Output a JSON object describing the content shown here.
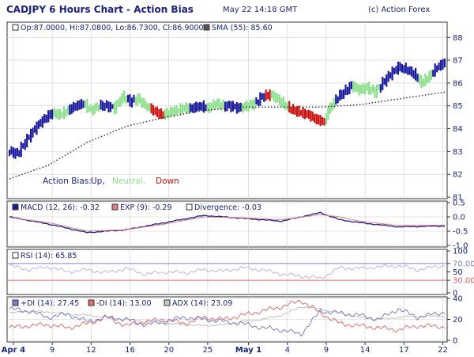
{
  "header": {
    "title": "CADJPY 6 Hours Chart - Action Bias",
    "date": "May 22 14:18 GMT",
    "copyright": "(c) Action Forex"
  },
  "colors": {
    "up": "#1a1a9e",
    "neutral": "#8ee08e",
    "down": "#cc1111",
    "frame": "#333333",
    "grid": "#cfcfcf",
    "text": "#1a237e",
    "sma": "#333333",
    "macd": "#1a1a8e",
    "exp": "#e08080",
    "rsi": "#9090d0",
    "rsi_line70": "#8080d0",
    "rsi_line30": "#e06060",
    "plusdi": "#8080c8",
    "minusdi": "#e07070",
    "adx": "#b0b0b0"
  },
  "chart_data": [
    {
      "type": "ohlc",
      "name": "price",
      "info": {
        "ohlc_label": "Op:87.0000, Hi:87.0800, Lo:86.7300, Cl:86.9000",
        "sma_label": "SMA (55): 85.60"
      },
      "ylim": [
        81,
        88.6
      ],
      "yticks": [
        "81",
        "82",
        "83",
        "84",
        "85",
        "86",
        "87",
        "88"
      ],
      "legend": {
        "prefix": "Action Bias:",
        "up": "Up,",
        "neutral": "Neutral,",
        "down": "Down"
      },
      "bias_segments": [
        {
          "from": 0,
          "to": 22,
          "bias": "up"
        },
        {
          "from": 23,
          "to": 30,
          "bias": "neutral"
        },
        {
          "from": 31,
          "to": 38,
          "bias": "up"
        },
        {
          "from": 39,
          "to": 46,
          "bias": "neutral"
        },
        {
          "from": 47,
          "to": 53,
          "bias": "up"
        },
        {
          "from": 54,
          "to": 60,
          "bias": "neutral"
        },
        {
          "from": 61,
          "to": 64,
          "bias": "up"
        },
        {
          "from": 65,
          "to": 72,
          "bias": "neutral"
        },
        {
          "from": 73,
          "to": 79,
          "bias": "down"
        },
        {
          "from": 80,
          "to": 92,
          "bias": "neutral"
        },
        {
          "from": 93,
          "to": 101,
          "bias": "up"
        },
        {
          "from": 102,
          "to": 110,
          "bias": "neutral"
        },
        {
          "from": 111,
          "to": 119,
          "bias": "up"
        },
        {
          "from": 120,
          "to": 126,
          "bias": "neutral"
        },
        {
          "from": 127,
          "to": 131,
          "bias": "up"
        },
        {
          "from": 132,
          "to": 134,
          "bias": "down"
        },
        {
          "from": 135,
          "to": 143,
          "bias": "neutral"
        },
        {
          "from": 144,
          "to": 151,
          "bias": "down"
        },
        {
          "from": 152,
          "to": 162,
          "bias": "down"
        },
        {
          "from": 163,
          "to": 167,
          "bias": "neutral"
        },
        {
          "from": 168,
          "to": 176,
          "bias": "up"
        },
        {
          "from": 177,
          "to": 190,
          "bias": "neutral"
        },
        {
          "from": 191,
          "to": 200,
          "bias": "up"
        },
        {
          "from": 201,
          "to": 210,
          "bias": "up"
        },
        {
          "from": 211,
          "to": 217,
          "bias": "neutral"
        },
        {
          "from": 218,
          "to": 224,
          "bias": "up"
        }
      ],
      "close_anchors": [
        [
          0,
          83.0
        ],
        [
          4,
          82.9
        ],
        [
          8,
          83.4
        ],
        [
          12,
          83.9
        ],
        [
          16,
          84.3
        ],
        [
          22,
          84.7
        ],
        [
          26,
          84.6
        ],
        [
          30,
          84.8
        ],
        [
          34,
          85.0
        ],
        [
          38,
          85.1
        ],
        [
          42,
          84.8
        ],
        [
          46,
          85.0
        ],
        [
          50,
          85.0
        ],
        [
          54,
          84.9
        ],
        [
          58,
          85.4
        ],
        [
          62,
          85.2
        ],
        [
          66,
          85.3
        ],
        [
          70,
          85.0
        ],
        [
          74,
          84.8
        ],
        [
          78,
          84.6
        ],
        [
          82,
          84.7
        ],
        [
          86,
          84.8
        ],
        [
          90,
          84.9
        ],
        [
          94,
          84.9
        ],
        [
          98,
          85.0
        ],
        [
          102,
          84.9
        ],
        [
          106,
          85.1
        ],
        [
          110,
          85.0
        ],
        [
          114,
          85.0
        ],
        [
          118,
          84.9
        ],
        [
          122,
          85.0
        ],
        [
          126,
          85.1
        ],
        [
          130,
          85.4
        ],
        [
          134,
          85.5
        ],
        [
          138,
          85.3
        ],
        [
          142,
          85.0
        ],
        [
          146,
          84.8
        ],
        [
          150,
          84.7
        ],
        [
          154,
          84.6
        ],
        [
          158,
          84.4
        ],
        [
          162,
          84.3
        ],
        [
          164,
          84.8
        ],
        [
          168,
          85.3
        ],
        [
          172,
          85.6
        ],
        [
          176,
          85.9
        ],
        [
          180,
          85.7
        ],
        [
          184,
          85.8
        ],
        [
          188,
          85.6
        ],
        [
          192,
          86.0
        ],
        [
          196,
          86.4
        ],
        [
          200,
          86.7
        ],
        [
          204,
          86.6
        ],
        [
          208,
          86.4
        ],
        [
          212,
          86.0
        ],
        [
          216,
          86.3
        ],
        [
          220,
          86.7
        ],
        [
          224,
          86.9
        ]
      ],
      "sma_anchors": [
        [
          0,
          81.8
        ],
        [
          20,
          82.4
        ],
        [
          40,
          83.4
        ],
        [
          60,
          84.1
        ],
        [
          80,
          84.5
        ],
        [
          100,
          84.8
        ],
        [
          120,
          84.95
        ],
        [
          140,
          84.95
        ],
        [
          160,
          84.95
        ],
        [
          180,
          85.05
        ],
        [
          200,
          85.3
        ],
        [
          224,
          85.6
        ]
      ],
      "x_ticks": [
        {
          "label": "Apr 4",
          "bar": 2
        },
        {
          "label": "9",
          "bar": 22
        },
        {
          "label": "12",
          "bar": 42
        },
        {
          "label": "16",
          "bar": 62
        },
        {
          "label": "20",
          "bar": 82
        },
        {
          "label": "25",
          "bar": 102
        },
        {
          "label": "May 1",
          "bar": 123
        },
        {
          "label": "4",
          "bar": 143
        },
        {
          "label": "9",
          "bar": 163
        },
        {
          "label": "14",
          "bar": 183
        },
        {
          "label": "17",
          "bar": 203
        },
        {
          "label": "22",
          "bar": 223
        }
      ]
    },
    {
      "type": "line",
      "name": "macd",
      "labels": {
        "macd": "MACD (12, 26): -0.32",
        "exp": "EXP (9): -0.29",
        "div": "Divergence: -0.03"
      },
      "ylim": [
        -1.0,
        0.5
      ],
      "yticks": [
        "0.5",
        "0.0",
        "-0.5",
        "-1.0"
      ],
      "macd_anchors": [
        [
          0,
          0.0
        ],
        [
          20,
          -0.25
        ],
        [
          40,
          -0.55
        ],
        [
          60,
          -0.45
        ],
        [
          80,
          -0.2
        ],
        [
          100,
          0.05
        ],
        [
          120,
          -0.05
        ],
        [
          140,
          -0.15
        ],
        [
          160,
          0.15
        ],
        [
          170,
          -0.1
        ],
        [
          180,
          -0.2
        ],
        [
          200,
          -0.35
        ],
        [
          224,
          -0.32
        ]
      ],
      "exp_anchors": [
        [
          0,
          -0.02
        ],
        [
          20,
          -0.2
        ],
        [
          40,
          -0.5
        ],
        [
          60,
          -0.45
        ],
        [
          80,
          -0.25
        ],
        [
          100,
          0.0
        ],
        [
          120,
          -0.03
        ],
        [
          140,
          -0.1
        ],
        [
          160,
          0.08
        ],
        [
          170,
          0.0
        ],
        [
          180,
          -0.15
        ],
        [
          200,
          -0.3
        ],
        [
          224,
          -0.29
        ]
      ]
    },
    {
      "type": "line",
      "name": "rsi",
      "label": "RSI (14): 65.85",
      "ylim": [
        0,
        100
      ],
      "yticks": [
        "100",
        "70.00",
        "50",
        "30.00",
        "0"
      ],
      "levels": [
        70,
        30
      ],
      "anchors": [
        [
          0,
          65
        ],
        [
          10,
          55
        ],
        [
          20,
          62
        ],
        [
          30,
          50
        ],
        [
          40,
          55
        ],
        [
          50,
          48
        ],
        [
          60,
          58
        ],
        [
          70,
          45
        ],
        [
          80,
          50
        ],
        [
          90,
          48
        ],
        [
          100,
          55
        ],
        [
          110,
          52
        ],
        [
          120,
          60
        ],
        [
          130,
          55
        ],
        [
          140,
          45
        ],
        [
          150,
          40
        ],
        [
          160,
          35
        ],
        [
          170,
          60
        ],
        [
          180,
          58
        ],
        [
          190,
          62
        ],
        [
          200,
          65
        ],
        [
          210,
          55
        ],
        [
          224,
          66
        ]
      ]
    },
    {
      "type": "line",
      "name": "dmi",
      "labels": {
        "plusdi": "+DI (14): 27.45",
        "minusdi": "-DI (14): 13.00",
        "adx": "ADX (14): 23.09"
      },
      "ylim": [
        0,
        40
      ],
      "yticks": [
        "40",
        "20",
        "0"
      ],
      "plusdi_anchors": [
        [
          0,
          30
        ],
        [
          10,
          28
        ],
        [
          20,
          22
        ],
        [
          30,
          25
        ],
        [
          40,
          18
        ],
        [
          50,
          22
        ],
        [
          60,
          20
        ],
        [
          70,
          15
        ],
        [
          80,
          18
        ],
        [
          90,
          22
        ],
        [
          100,
          20
        ],
        [
          110,
          18
        ],
        [
          120,
          16
        ],
        [
          130,
          12
        ],
        [
          140,
          10
        ],
        [
          150,
          6
        ],
        [
          160,
          28
        ],
        [
          170,
          26
        ],
        [
          180,
          24
        ],
        [
          190,
          20
        ],
        [
          200,
          30
        ],
        [
          210,
          22
        ],
        [
          224,
          27
        ]
      ],
      "minusdi_anchors": [
        [
          0,
          12
        ],
        [
          10,
          14
        ],
        [
          20,
          15
        ],
        [
          30,
          12
        ],
        [
          40,
          16
        ],
        [
          50,
          22
        ],
        [
          60,
          14
        ],
        [
          70,
          18
        ],
        [
          80,
          20
        ],
        [
          90,
          16
        ],
        [
          100,
          22
        ],
        [
          110,
          20
        ],
        [
          120,
          24
        ],
        [
          130,
          28
        ],
        [
          140,
          32
        ],
        [
          150,
          38
        ],
        [
          160,
          26
        ],
        [
          170,
          16
        ],
        [
          180,
          14
        ],
        [
          190,
          12
        ],
        [
          200,
          10
        ],
        [
          210,
          14
        ],
        [
          224,
          13
        ]
      ],
      "adx_anchors": [
        [
          0,
          26
        ],
        [
          10,
          28
        ],
        [
          20,
          27
        ],
        [
          30,
          25
        ],
        [
          40,
          24
        ],
        [
          50,
          22
        ],
        [
          60,
          20
        ],
        [
          70,
          18
        ],
        [
          80,
          16
        ],
        [
          90,
          15
        ],
        [
          100,
          14
        ],
        [
          110,
          15
        ],
        [
          120,
          18
        ],
        [
          130,
          20
        ],
        [
          140,
          24
        ],
        [
          150,
          32
        ],
        [
          160,
          30
        ],
        [
          170,
          26
        ],
        [
          180,
          22
        ],
        [
          190,
          20
        ],
        [
          200,
          22
        ],
        [
          210,
          23
        ],
        [
          224,
          23
        ]
      ]
    }
  ]
}
